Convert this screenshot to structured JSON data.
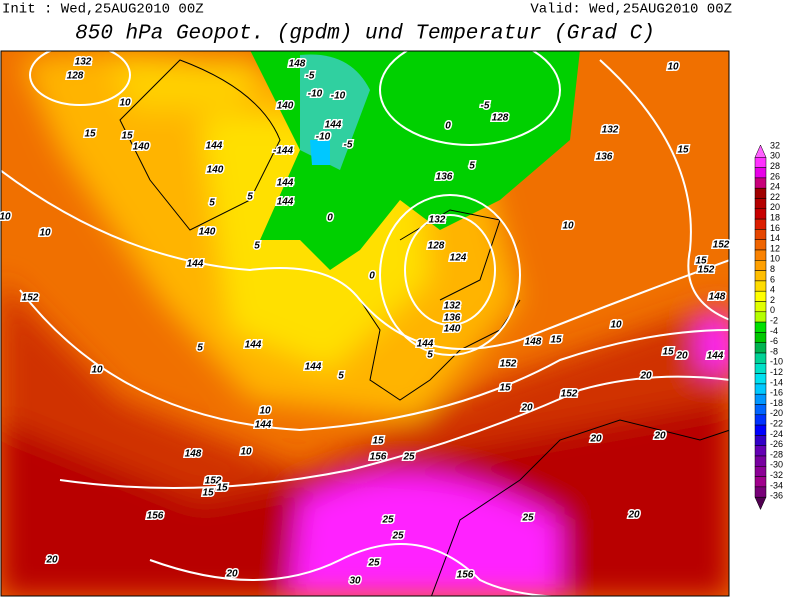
{
  "header": {
    "init": "Init : Wed,25AUG2010 00Z",
    "valid": "Valid: Wed,25AUG2010 00Z",
    "title": "850 hPa Geopot. (gpdm) und Temperatur (Grad C)"
  },
  "colorbar": {
    "labels": [
      "32",
      "30",
      "28",
      "26",
      "24",
      "22",
      "20",
      "18",
      "16",
      "14",
      "12",
      "10",
      "8",
      "6",
      "4",
      "2",
      "0",
      "-2",
      "-4",
      "-6",
      "-8",
      "-10",
      "-12",
      "-14",
      "-16",
      "-18",
      "-20",
      "-22",
      "-24",
      "-26",
      "-28",
      "-30",
      "-32",
      "-34",
      "-36"
    ],
    "colors": [
      "#ff60ff",
      "#ff30ff",
      "#e800e8",
      "#c8007a",
      "#a00000",
      "#b40000",
      "#c80000",
      "#dc1e00",
      "#e64600",
      "#f06400",
      "#fa8200",
      "#ffa000",
      "#ffbe00",
      "#ffdc00",
      "#ffff00",
      "#e0ff00",
      "#b4ff00",
      "#00e000",
      "#00c800",
      "#00b450",
      "#00d296",
      "#00e0c8",
      "#00e0f0",
      "#00c8ff",
      "#0096ff",
      "#0064ff",
      "#0032ff",
      "#0000ff",
      "#3200c8",
      "#6400b4",
      "#7800a0",
      "#8c0096",
      "#a0008c",
      "#780078",
      "#500050"
    ]
  },
  "map_labels": [
    "132",
    "128",
    "10",
    "15",
    "15",
    "140",
    "144",
    "140",
    "5",
    "140",
    "144",
    "10",
    "10",
    "152",
    "5",
    "10",
    "144",
    "144",
    "5",
    "10",
    "144",
    "10",
    "148",
    "152",
    "15",
    "15",
    "156",
    "20",
    "20",
    "30",
    "25",
    "25",
    "25",
    "156",
    "25",
    "156",
    "15",
    "25",
    "148",
    "-5",
    "-10",
    "-10",
    "140",
    "144",
    "-10",
    "-5",
    "-144",
    "144",
    "144",
    "0",
    "5",
    "-5",
    "128",
    "0",
    "5",
    "136",
    "132",
    "128",
    "124",
    "132",
    "136",
    "140",
    "144",
    "148",
    "15",
    "152",
    "15",
    "152",
    "20",
    "20",
    "20",
    "20",
    "20",
    "144",
    "15",
    "152",
    "15",
    "148",
    "152",
    "10",
    "10",
    "136",
    "132",
    "15",
    "10",
    "0",
    "5",
    "5",
    "20"
  ]
}
